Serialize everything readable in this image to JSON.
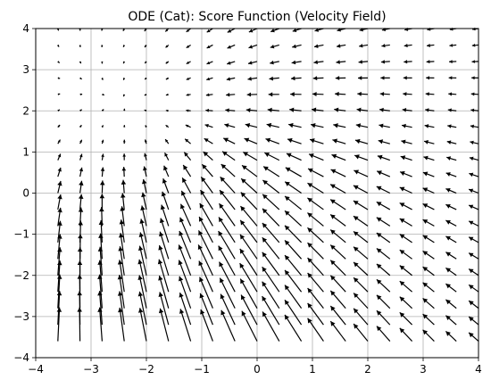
{
  "chart_data": {
    "type": "quiver",
    "title": "ODE (Cat): Score Function (Velocity Field)",
    "xlabel": "",
    "ylabel": "",
    "xlim": [
      -4,
      4
    ],
    "ylim": [
      -4,
      4
    ],
    "grid": true,
    "x_ticks": [
      -4,
      -3,
      -2,
      -1,
      0,
      1,
      2,
      3,
      4
    ],
    "y_ticks": [
      -4,
      -3,
      -2,
      -1,
      0,
      1,
      2,
      3,
      4
    ],
    "x_tick_labels": [
      "−4",
      "−3",
      "−2",
      "−1",
      "0",
      "1",
      "2",
      "3",
      "4"
    ],
    "y_tick_labels": [
      "−4",
      "−3",
      "−2",
      "−1",
      "0",
      "1",
      "2",
      "3",
      "4"
    ],
    "grid_x": [
      -3.6,
      -3.2,
      -2.8,
      -2.4,
      -2.0,
      -1.6,
      -1.2,
      -0.8,
      -0.4,
      0.0,
      0.4,
      0.8,
      1.2,
      1.6,
      2.0,
      2.4,
      2.8,
      3.2,
      3.6,
      4.0
    ],
    "grid_y": [
      -3.6,
      -3.2,
      -2.8,
      -2.4,
      -2.0,
      -1.6,
      -1.2,
      -0.8,
      -0.4,
      0.0,
      0.4,
      0.8,
      1.2,
      1.6,
      2.0,
      2.4,
      2.8,
      3.2,
      3.6,
      4.0
    ],
    "field": {
      "description_of_vector": "velocity (u, v) at each grid point",
      "attractor": [
        -3.3,
        2.9
      ],
      "sink_attractor": [
        -0.6,
        0.8
      ]
    },
    "arrow_color": "#000000",
    "grid_color": "#b0b0b0"
  }
}
